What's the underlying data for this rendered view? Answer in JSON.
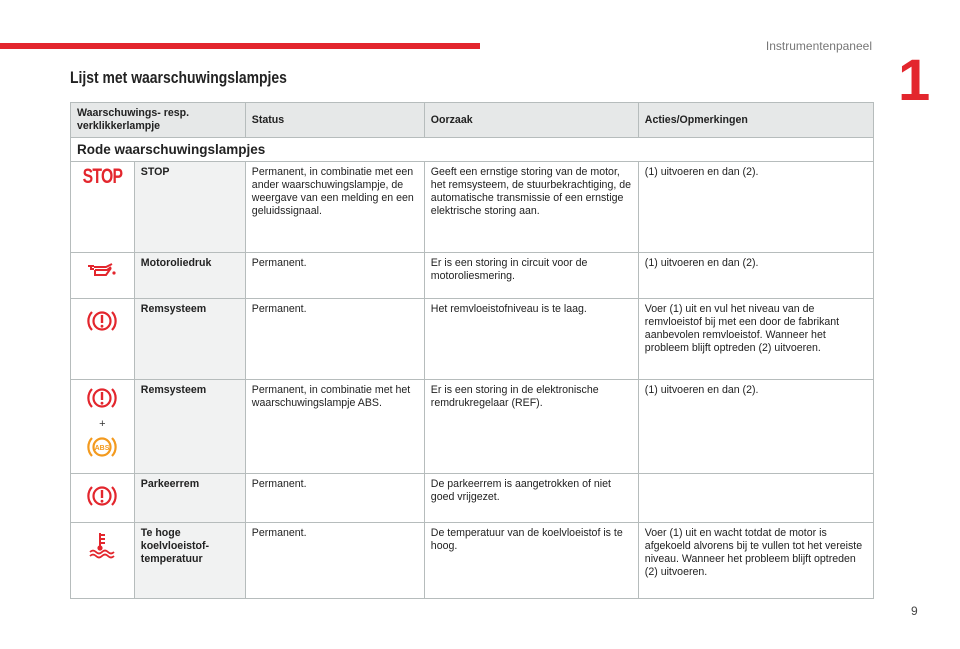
{
  "header": {
    "chapter_title": "Instrumentenpaneel",
    "chapter_number": "1"
  },
  "title": "Lijst met waarschuwingslampjes",
  "table": {
    "columns": [
      "Waarschuwings- resp. verklikkerlampje",
      "Status",
      "Oorzaak",
      "Acties/Opmerkingen"
    ],
    "section": "Rode waarschuwingslampjes",
    "rows": [
      {
        "icon": "stop-icon",
        "icon_text": "STOP",
        "name": "STOP",
        "status": "Permanent, in combinatie met een ander waarschuwingslampje, de weergave van een melding en een geluidssignaal.",
        "cause": "Geeft een ernstige storing van de motor, het remsysteem, de stuurbekrachtiging, de automatische transmissie of een ernstige elektrische storing aan.",
        "action": "(1) uitvoeren en dan (2)."
      },
      {
        "icon": "oil-pressure-icon",
        "name": "Motoroliedruk",
        "status": "Permanent.",
        "cause": "Er is een storing in circuit voor de motoroliesmering.",
        "action": "(1) uitvoeren en dan (2)."
      },
      {
        "icon": "brake-warning-icon",
        "name": "Remsysteem",
        "status": "Permanent.",
        "cause": "Het remvloeistofniveau is te laag.",
        "action": "Voer (1) uit en vul het niveau van de remvloeistof bij met een door de fabrikant aanbevolen remvloeistof. Wanneer het probleem blijft optreden (2) uitvoeren."
      },
      {
        "icon": "brake-warning-plus-abs-icon",
        "plus": "+",
        "abs_text": "ABS",
        "name": "Remsysteem",
        "status": "Permanent, in combinatie met het waarschuwingslampje ABS.",
        "cause": "Er is een storing in de elektronische remdrukregelaar (REF).",
        "action": "(1) uitvoeren en dan (2)."
      },
      {
        "icon": "brake-warning-icon",
        "name": "Parkeerrem",
        "status": "Permanent.",
        "cause": "De parkeerrem is aangetrokken of niet goed vrijgezet.",
        "action": ""
      },
      {
        "icon": "coolant-temperature-icon",
        "name": "Te hoge koelvloeistof-temperatuur",
        "status": "Permanent.",
        "cause": "De temperatuur van de koelvloeistof is te hoog.",
        "action": "Voer (1) uit en wacht totdat de motor is afgekoeld alvorens bij te vullen tot het vereiste niveau. Wanneer het probleem blijft optreden (2) uitvoeren."
      }
    ]
  },
  "colors": {
    "red": "#e3262d",
    "amber": "#f39a1e"
  },
  "page_number": "9"
}
